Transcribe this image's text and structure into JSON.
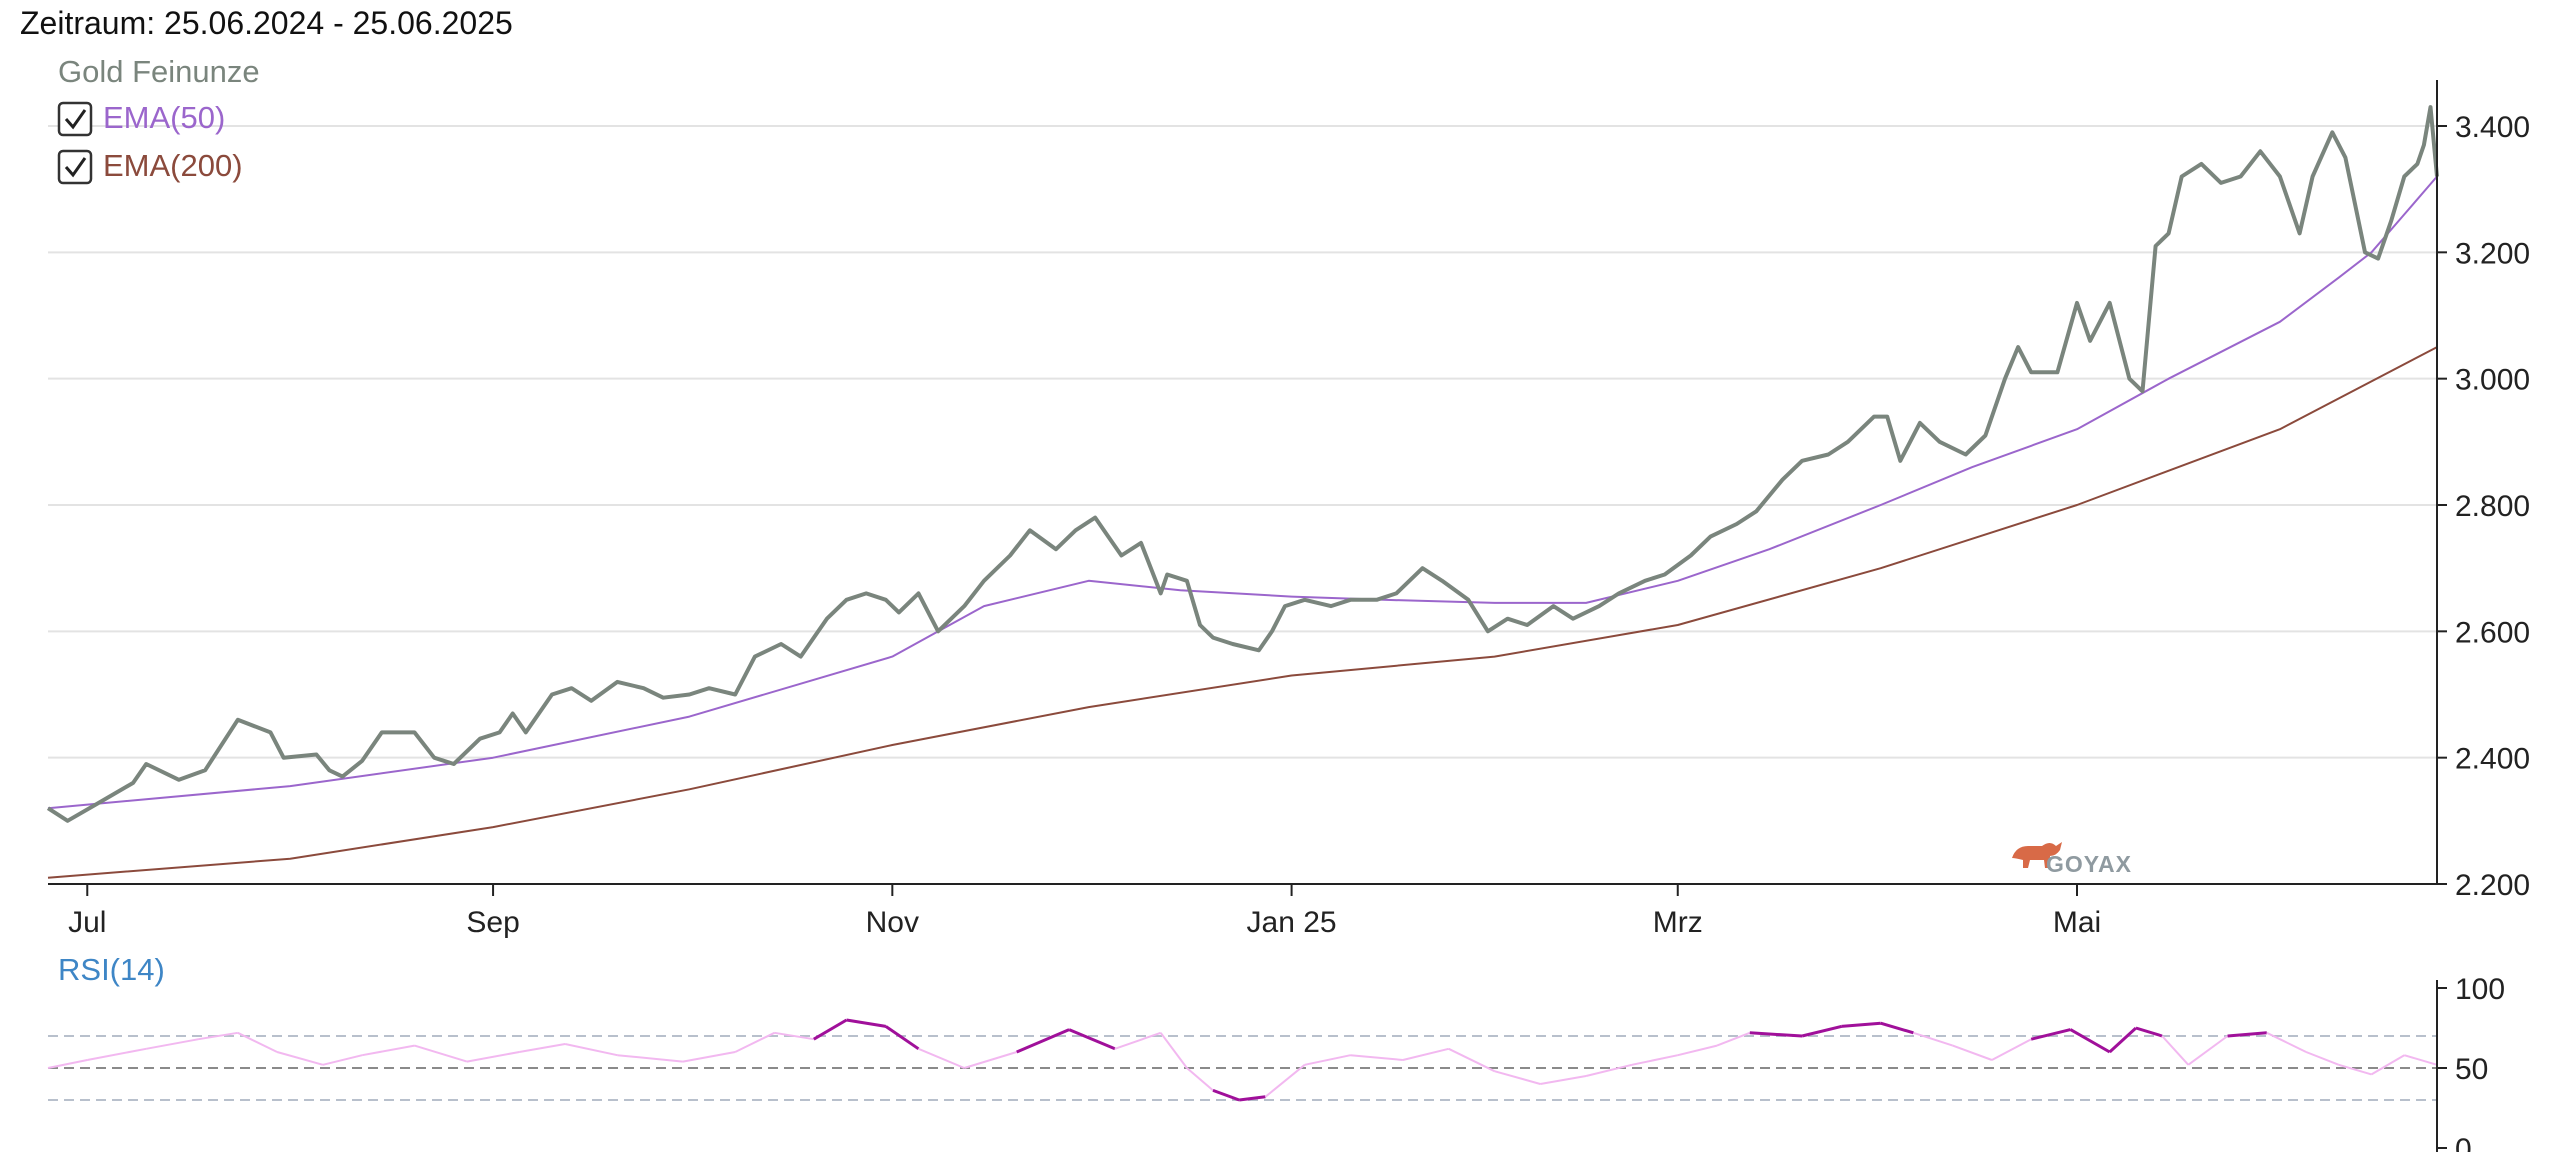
{
  "header": {
    "period": "Zeitraum: 25.06.2024 - 25.06.2025"
  },
  "legend": {
    "main_series": "Gold Feinunze",
    "ema50": "EMA(50)",
    "ema200": "EMA(200)",
    "ema50_checked": true,
    "ema200_checked": true,
    "checkbox_icon": "checkmark-icon"
  },
  "watermark": {
    "text": "GOYAX",
    "icon": "bull-icon"
  },
  "colors": {
    "price": "#7a857d",
    "ema50": "#9b66cc",
    "ema200": "#8b4a3c",
    "rsi_high": "#a0109a",
    "rsi_mid": "#f2b8f0",
    "rsi_label": "#3e86c6",
    "grid": "#e3e3e3",
    "axis": "#222222",
    "legend_title": "#7a857d",
    "watermark": "#c25a3c"
  },
  "chart_data": [
    {
      "type": "line",
      "x_range": [
        "2024-06-25",
        "2025-06-25"
      ],
      "ylim": [
        2200,
        3460
      ],
      "y_ticks": [
        2200,
        2400,
        2600,
        2800,
        3000,
        3200,
        3400
      ],
      "y_tick_labels": [
        "2.200",
        "2.400",
        "2.600",
        "2.800",
        "3.000",
        "3.200",
        "3.400"
      ],
      "x_ticks": [
        {
          "date": "2024-07-01",
          "label": "Jul"
        },
        {
          "date": "2024-09-01",
          "label": "Sep"
        },
        {
          "date": "2024-11-01",
          "label": "Nov"
        },
        {
          "date": "2025-01-01",
          "label": "Jan 25"
        },
        {
          "date": "2025-03-01",
          "label": "Mrz"
        },
        {
          "date": "2025-05-01",
          "label": "Mai"
        }
      ],
      "grid": true,
      "series": [
        {
          "name": "Gold Feinunze",
          "points": [
            [
              "2024-06-25",
              2320
            ],
            [
              "2024-06-28",
              2300
            ],
            [
              "2024-07-03",
              2330
            ],
            [
              "2024-07-08",
              2360
            ],
            [
              "2024-07-10",
              2390
            ],
            [
              "2024-07-15",
              2365
            ],
            [
              "2024-07-19",
              2380
            ],
            [
              "2024-07-24",
              2460
            ],
            [
              "2024-07-29",
              2440
            ],
            [
              "2024-07-31",
              2400
            ],
            [
              "2024-08-05",
              2405
            ],
            [
              "2024-08-07",
              2380
            ],
            [
              "2024-08-09",
              2370
            ],
            [
              "2024-08-12",
              2395
            ],
            [
              "2024-08-15",
              2440
            ],
            [
              "2024-08-20",
              2440
            ],
            [
              "2024-08-23",
              2400
            ],
            [
              "2024-08-26",
              2390
            ],
            [
              "2024-08-30",
              2430
            ],
            [
              "2024-09-02",
              2440
            ],
            [
              "2024-09-04",
              2470
            ],
            [
              "2024-09-06",
              2440
            ],
            [
              "2024-09-10",
              2500
            ],
            [
              "2024-09-13",
              2510
            ],
            [
              "2024-09-16",
              2490
            ],
            [
              "2024-09-20",
              2520
            ],
            [
              "2024-09-24",
              2510
            ],
            [
              "2024-09-27",
              2495
            ],
            [
              "2024-10-01",
              2500
            ],
            [
              "2024-10-04",
              2510
            ],
            [
              "2024-10-08",
              2500
            ],
            [
              "2024-10-11",
              2560
            ],
            [
              "2024-10-15",
              2580
            ],
            [
              "2024-10-18",
              2560
            ],
            [
              "2024-10-22",
              2620
            ],
            [
              "2024-10-25",
              2650
            ],
            [
              "2024-10-28",
              2660
            ],
            [
              "2024-10-31",
              2650
            ],
            [
              "2024-11-02",
              2630
            ],
            [
              "2024-11-05",
              2660
            ],
            [
              "2024-11-08",
              2600
            ],
            [
              "2024-11-12",
              2640
            ],
            [
              "2024-11-15",
              2680
            ],
            [
              "2024-11-19",
              2720
            ],
            [
              "2024-11-22",
              2760
            ],
            [
              "2024-11-26",
              2730
            ],
            [
              "2024-11-29",
              2760
            ],
            [
              "2024-12-02",
              2780
            ],
            [
              "2024-12-04",
              2750
            ],
            [
              "2024-12-06",
              2720
            ],
            [
              "2024-12-09",
              2740
            ],
            [
              "2024-12-12",
              2660
            ],
            [
              "2024-12-13",
              2690
            ],
            [
              "2024-12-16",
              2680
            ],
            [
              "2024-12-18",
              2610
            ],
            [
              "2024-12-20",
              2590
            ],
            [
              "2024-12-23",
              2580
            ],
            [
              "2024-12-27",
              2570
            ],
            [
              "2024-12-29",
              2600
            ],
            [
              "2024-12-31",
              2640
            ],
            [
              "2025-01-03",
              2650
            ],
            [
              "2025-01-07",
              2640
            ],
            [
              "2025-01-10",
              2650
            ],
            [
              "2025-01-14",
              2650
            ],
            [
              "2025-01-17",
              2660
            ],
            [
              "2025-01-21",
              2700
            ],
            [
              "2025-01-24",
              2680
            ],
            [
              "2025-01-28",
              2650
            ],
            [
              "2025-01-31",
              2600
            ],
            [
              "2025-02-03",
              2620
            ],
            [
              "2025-02-06",
              2610
            ],
            [
              "2025-02-10",
              2640
            ],
            [
              "2025-02-13",
              2620
            ],
            [
              "2025-02-17",
              2640
            ],
            [
              "2025-02-20",
              2660
            ],
            [
              "2025-02-24",
              2680
            ],
            [
              "2025-02-27",
              2690
            ],
            [
              "2025-03-03",
              2720
            ],
            [
              "2025-03-06",
              2750
            ],
            [
              "2025-03-10",
              2770
            ],
            [
              "2025-03-13",
              2790
            ],
            [
              "2025-03-17",
              2840
            ],
            [
              "2025-03-20",
              2870
            ],
            [
              "2025-03-24",
              2880
            ],
            [
              "2025-03-27",
              2900
            ],
            [
              "2025-03-31",
              2940
            ],
            [
              "2025-04-02",
              2940
            ],
            [
              "2025-04-04",
              2870
            ],
            [
              "2025-04-07",
              2930
            ],
            [
              "2025-04-10",
              2900
            ],
            [
              "2025-04-14",
              2880
            ],
            [
              "2025-04-17",
              2910
            ],
            [
              "2025-04-20",
              3000
            ],
            [
              "2025-04-22",
              3050
            ],
            [
              "2025-04-24",
              3010
            ],
            [
              "2025-04-28",
              3010
            ],
            [
              "2025-05-01",
              3120
            ],
            [
              "2025-05-03",
              3060
            ],
            [
              "2025-05-06",
              3120
            ],
            [
              "2025-05-09",
              3000
            ],
            [
              "2025-05-11",
              2980
            ],
            [
              "2025-05-13",
              3210
            ],
            [
              "2025-05-15",
              3230
            ],
            [
              "2025-05-17",
              3320
            ],
            [
              "2025-05-20",
              3340
            ],
            [
              "2025-05-23",
              3310
            ],
            [
              "2025-05-26",
              3320
            ],
            [
              "2025-05-29",
              3360
            ],
            [
              "2025-06-01",
              3320
            ],
            [
              "2025-06-04",
              3230
            ],
            [
              "2025-06-06",
              3320
            ],
            [
              "2025-06-09",
              3390
            ],
            [
              "2025-06-11",
              3350
            ],
            [
              "2025-06-13",
              3250
            ],
            [
              "2025-06-14",
              3200
            ],
            [
              "2025-06-16",
              3190
            ],
            [
              "2025-06-18",
              3250
            ],
            [
              "2025-06-20",
              3320
            ],
            [
              "2025-06-22",
              3340
            ],
            [
              "2025-06-23",
              3370
            ],
            [
              "2025-06-24",
              3430
            ],
            [
              "2025-06-25",
              3320
            ]
          ]
        },
        {
          "name": "EMA(50)",
          "points": [
            [
              "2024-06-25",
              2320
            ],
            [
              "2024-08-01",
              2355
            ],
            [
              "2024-09-01",
              2400
            ],
            [
              "2024-10-01",
              2465
            ],
            [
              "2024-11-01",
              2560
            ],
            [
              "2024-11-15",
              2640
            ],
            [
              "2024-12-01",
              2680
            ],
            [
              "2024-12-15",
              2665
            ],
            [
              "2025-01-01",
              2655
            ],
            [
              "2025-01-15",
              2650
            ],
            [
              "2025-02-01",
              2645
            ],
            [
              "2025-02-15",
              2645
            ],
            [
              "2025-03-01",
              2680
            ],
            [
              "2025-03-15",
              2730
            ],
            [
              "2025-04-01",
              2800
            ],
            [
              "2025-04-15",
              2860
            ],
            [
              "2025-05-01",
              2920
            ],
            [
              "2025-05-15",
              3000
            ],
            [
              "2025-06-01",
              3090
            ],
            [
              "2025-06-10",
              3160
            ],
            [
              "2025-06-15",
              3200
            ],
            [
              "2025-06-20",
              3260
            ],
            [
              "2025-06-25",
              3320
            ]
          ]
        },
        {
          "name": "EMA(200)",
          "points": [
            [
              "2024-06-25",
              2210
            ],
            [
              "2024-08-01",
              2240
            ],
            [
              "2024-09-01",
              2290
            ],
            [
              "2024-10-01",
              2350
            ],
            [
              "2024-11-01",
              2420
            ],
            [
              "2024-12-01",
              2480
            ],
            [
              "2025-01-01",
              2530
            ],
            [
              "2025-02-01",
              2560
            ],
            [
              "2025-03-01",
              2610
            ],
            [
              "2025-04-01",
              2700
            ],
            [
              "2025-05-01",
              2800
            ],
            [
              "2025-06-01",
              2920
            ],
            [
              "2025-06-25",
              3050
            ]
          ]
        }
      ]
    },
    {
      "type": "line",
      "title": "RSI(14)",
      "ylim": [
        0,
        100
      ],
      "y_ticks": [
        0,
        50,
        100
      ],
      "y_tick_labels": [
        "0",
        "50",
        "100"
      ],
      "reference_lines": [
        30,
        50,
        70
      ],
      "series": [
        {
          "name": "RSI(14)",
          "points": [
            [
              "2024-06-25",
              50
            ],
            [
              "2024-07-01",
              55
            ],
            [
              "2024-07-10",
              62
            ],
            [
              "2024-07-18",
              68
            ],
            [
              "2024-07-24",
              72
            ],
            [
              "2024-07-30",
              60
            ],
            [
              "2024-08-06",
              52
            ],
            [
              "2024-08-12",
              58
            ],
            [
              "2024-08-20",
              64
            ],
            [
              "2024-08-28",
              54
            ],
            [
              "2024-09-05",
              60
            ],
            [
              "2024-09-12",
              65
            ],
            [
              "2024-09-20",
              58
            ],
            [
              "2024-09-30",
              54
            ],
            [
              "2024-10-08",
              60
            ],
            [
              "2024-10-14",
              72
            ],
            [
              "2024-10-20",
              68
            ],
            [
              "2024-10-25",
              80
            ],
            [
              "2024-10-31",
              76
            ],
            [
              "2024-11-05",
              62
            ],
            [
              "2024-11-12",
              50
            ],
            [
              "2024-11-20",
              60
            ],
            [
              "2024-11-28",
              74
            ],
            [
              "2024-12-05",
              62
            ],
            [
              "2024-12-12",
              72
            ],
            [
              "2024-12-16",
              50
            ],
            [
              "2024-12-20",
              36
            ],
            [
              "2024-12-24",
              30
            ],
            [
              "2024-12-28",
              32
            ],
            [
              "2025-01-03",
              52
            ],
            [
              "2025-01-10",
              58
            ],
            [
              "2025-01-18",
              55
            ],
            [
              "2025-01-25",
              62
            ],
            [
              "2025-02-01",
              48
            ],
            [
              "2025-02-08",
              40
            ],
            [
              "2025-02-15",
              45
            ],
            [
              "2025-02-22",
              52
            ],
            [
              "2025-03-01",
              58
            ],
            [
              "2025-03-07",
              64
            ],
            [
              "2025-03-12",
              72
            ],
            [
              "2025-03-20",
              70
            ],
            [
              "2025-03-26",
              76
            ],
            [
              "2025-04-01",
              78
            ],
            [
              "2025-04-06",
              72
            ],
            [
              "2025-04-12",
              64
            ],
            [
              "2025-04-18",
              55
            ],
            [
              "2025-04-24",
              68
            ],
            [
              "2025-04-30",
              74
            ],
            [
              "2025-05-06",
              60
            ],
            [
              "2025-05-10",
              75
            ],
            [
              "2025-05-14",
              70
            ],
            [
              "2025-05-18",
              52
            ],
            [
              "2025-05-24",
              70
            ],
            [
              "2025-05-30",
              72
            ],
            [
              "2025-06-05",
              60
            ],
            [
              "2025-06-10",
              52
            ],
            [
              "2025-06-15",
              46
            ],
            [
              "2025-06-20",
              58
            ],
            [
              "2025-06-25",
              52
            ]
          ]
        }
      ]
    }
  ]
}
